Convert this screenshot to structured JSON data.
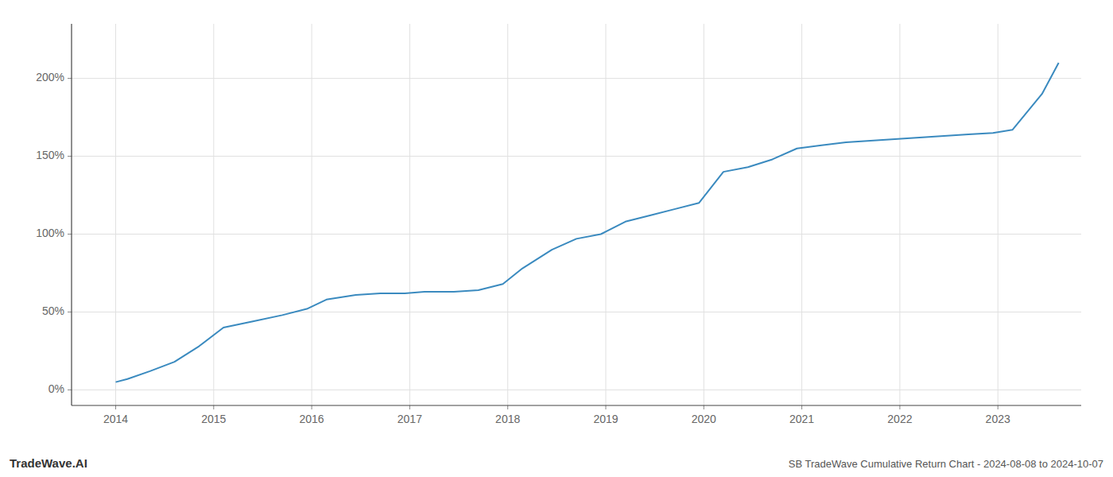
{
  "chart_data": {
    "type": "line",
    "title": "SB TradeWave Cumulative Return Chart - 2024-08-08 to 2024-10-07",
    "annotations": [
      "TradeWave.AI"
    ],
    "x": [
      2014.0,
      2014.12,
      2014.35,
      2014.6,
      2014.85,
      2015.1,
      2015.4,
      2015.7,
      2015.95,
      2016.15,
      2016.45,
      2016.7,
      2016.95,
      2017.15,
      2017.45,
      2017.7,
      2017.95,
      2018.15,
      2018.45,
      2018.7,
      2018.95,
      2019.2,
      2019.45,
      2019.7,
      2019.95,
      2020.2,
      2020.45,
      2020.7,
      2020.95,
      2021.2,
      2021.45,
      2021.7,
      2021.95,
      2022.2,
      2022.45,
      2022.7,
      2022.95,
      2023.15,
      2023.45,
      2023.62
    ],
    "values": [
      5,
      7,
      12,
      18,
      28,
      40,
      44,
      48,
      52,
      58,
      61,
      62,
      62,
      63,
      63,
      64,
      68,
      78,
      90,
      97,
      100,
      108,
      112,
      116,
      120,
      140,
      143,
      148,
      155,
      157,
      159,
      160,
      161,
      162,
      163,
      164,
      165,
      167,
      190,
      210
    ],
    "color": "#3a8abf",
    "xlim": [
      2013.55,
      2023.85
    ],
    "xticks": [
      2014,
      2015,
      2016,
      2017,
      2018,
      2019,
      2020,
      2021,
      2022,
      2023
    ],
    "ylim": [
      -10,
      235
    ],
    "yticks": [
      {
        "value": 0,
        "label": "0%"
      },
      {
        "value": 50,
        "label": "50%"
      },
      {
        "value": 100,
        "label": "100%"
      },
      {
        "value": 150,
        "label": "150%"
      },
      {
        "value": 200,
        "label": "200%"
      }
    ],
    "grid": true
  }
}
